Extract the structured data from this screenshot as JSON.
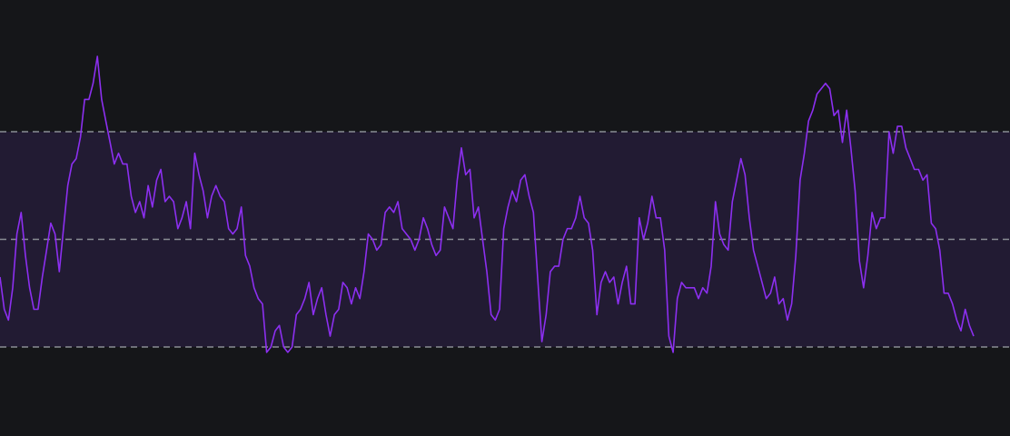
{
  "chart_data": {
    "type": "line",
    "title": "",
    "xlabel": "",
    "ylabel": "",
    "grid": false,
    "legend": "none",
    "colors": {
      "background": "#151619",
      "band": "#221b33",
      "line": "#8c2ff0",
      "reference_lines": "#8a8d94"
    },
    "ylim": [
      0,
      100
    ],
    "xlim": [
      0,
      277
    ],
    "band": [
      30,
      70
    ],
    "reference_lines": [
      30,
      50,
      70
    ],
    "series": [
      {
        "values": [
          43,
          37,
          35,
          41,
          51,
          55,
          47,
          41,
          37,
          37,
          43,
          48,
          53,
          51,
          44,
          52,
          60,
          64,
          65,
          69,
          76,
          76,
          79,
          84,
          76,
          72,
          68,
          64,
          66,
          64,
          64,
          58,
          55,
          57,
          54,
          60,
          56,
          61,
          63,
          57,
          58,
          57,
          52,
          54,
          57,
          52,
          66,
          62,
          59,
          54,
          58,
          60,
          58,
          57,
          52,
          51,
          52,
          56,
          47,
          45,
          41,
          39,
          38,
          29,
          30,
          33,
          34,
          30,
          29,
          30,
          36,
          37,
          39,
          42,
          36,
          39,
          41,
          36,
          32,
          36,
          37,
          42,
          41,
          38,
          41,
          39,
          44,
          51,
          50,
          48,
          49,
          55,
          56,
          55,
          57,
          52,
          51,
          50,
          48,
          50,
          54,
          52,
          49,
          47,
          48,
          56,
          54,
          52,
          61,
          67,
          62,
          63,
          54,
          56,
          50,
          44,
          36,
          35,
          37,
          52,
          56,
          59,
          57,
          61,
          62,
          58,
          55,
          43,
          31,
          36,
          44,
          45,
          45,
          50,
          52,
          52,
          54,
          58,
          54,
          53,
          48,
          36,
          42,
          44,
          42,
          43,
          38,
          42,
          45,
          38,
          38,
          54,
          50,
          53,
          58,
          54,
          54,
          48,
          32,
          29,
          39,
          42,
          41,
          41,
          41,
          39,
          41,
          40,
          45,
          57,
          51,
          49,
          48,
          57,
          61,
          65,
          62,
          54,
          48,
          45,
          42,
          39,
          40,
          43,
          38,
          39,
          35,
          38,
          47,
          61,
          66,
          72,
          74,
          77,
          78,
          79,
          78,
          73,
          74,
          68,
          74,
          67,
          59,
          46,
          41,
          47,
          55,
          52,
          54,
          54,
          70,
          66,
          71,
          71,
          67,
          65,
          63,
          63,
          61,
          62,
          53,
          52,
          48,
          40,
          40,
          38,
          35,
          33,
          37,
          34,
          32
        ]
      }
    ]
  }
}
